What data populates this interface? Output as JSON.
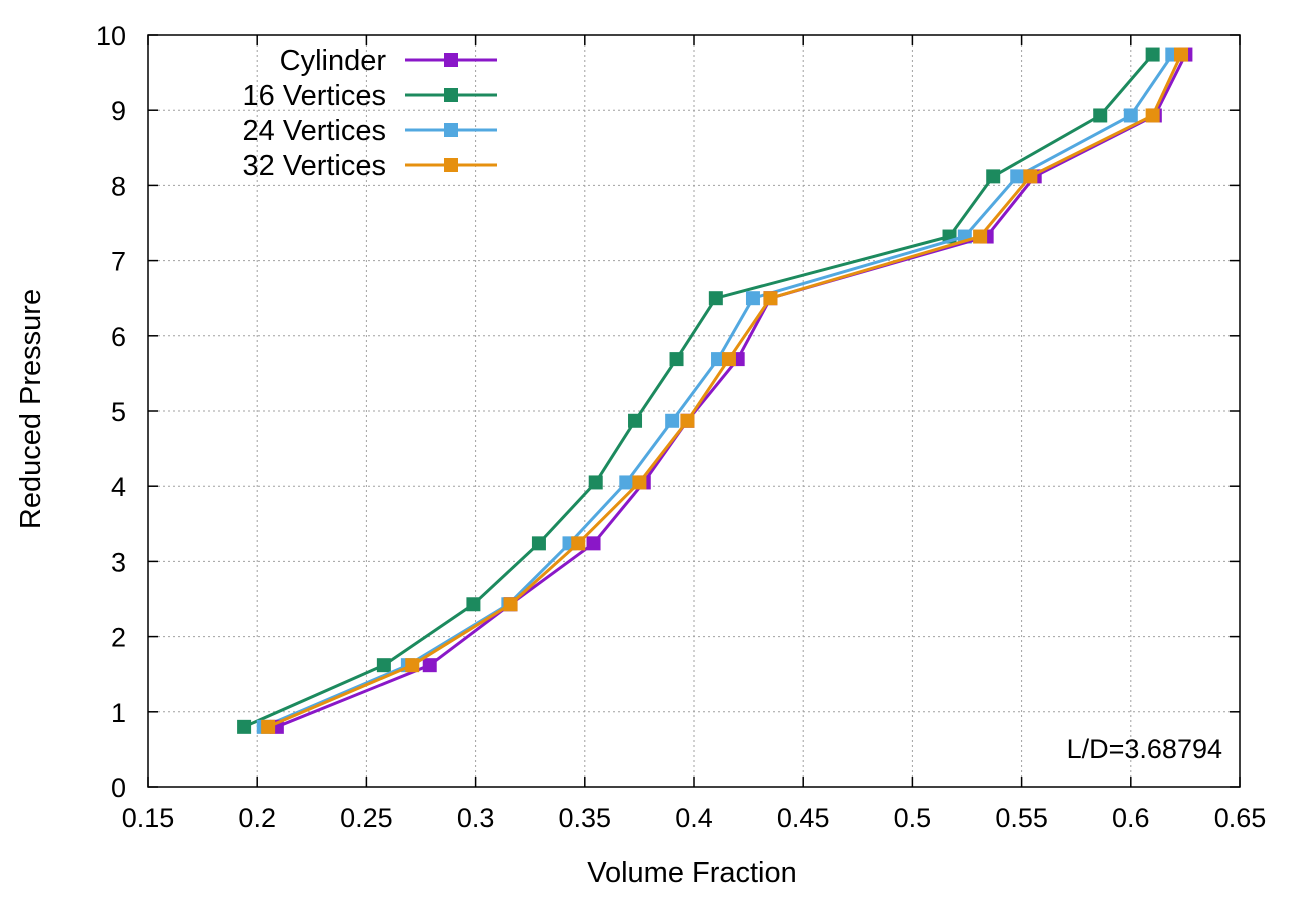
{
  "chart_data": {
    "type": "line",
    "title": "",
    "xlabel": "Volume Fraction",
    "ylabel": "Reduced Pressure",
    "xlim": [
      0.15,
      0.65
    ],
    "ylim": [
      0,
      10
    ],
    "xticks": [
      "0.15",
      "0.2",
      "0.25",
      "0.3",
      "0.35",
      "0.4",
      "0.45",
      "0.5",
      "0.55",
      "0.6",
      "0.65"
    ],
    "yticks": [
      "0",
      "1",
      "2",
      "3",
      "4",
      "5",
      "6",
      "7",
      "8",
      "9",
      "10"
    ],
    "grid": true,
    "legend_position": "top-left",
    "annotation": "L/D=3.68794",
    "series": [
      {
        "name": "Cylinder",
        "color": "#8a17c8",
        "x": [
          0.209,
          0.279,
          0.316,
          0.354,
          0.377,
          0.397,
          0.42,
          0.435,
          0.534,
          0.556,
          0.611,
          0.625
        ],
        "y": [
          0.8,
          1.62,
          2.43,
          3.24,
          4.05,
          4.87,
          5.69,
          6.5,
          7.32,
          8.12,
          8.93,
          9.74
        ]
      },
      {
        "name": "16 Vertices",
        "color": "#1c8a5e",
        "x": [
          0.194,
          0.258,
          0.299,
          0.329,
          0.355,
          0.373,
          0.392,
          0.41,
          0.517,
          0.537,
          0.586,
          0.61
        ],
        "y": [
          0.8,
          1.62,
          2.43,
          3.24,
          4.05,
          4.87,
          5.69,
          6.5,
          7.32,
          8.12,
          8.93,
          9.74
        ]
      },
      {
        "name": "24 Vertices",
        "color": "#52a8e0",
        "x": [
          0.203,
          0.269,
          0.315,
          0.343,
          0.369,
          0.39,
          0.411,
          0.427,
          0.524,
          0.548,
          0.6,
          0.619
        ],
        "y": [
          0.8,
          1.62,
          2.43,
          3.24,
          4.05,
          4.87,
          5.69,
          6.5,
          7.32,
          8.12,
          8.93,
          9.74
        ]
      },
      {
        "name": "32 Vertices",
        "color": "#e6900f",
        "x": [
          0.205,
          0.271,
          0.316,
          0.347,
          0.375,
          0.397,
          0.416,
          0.435,
          0.531,
          0.554,
          0.61,
          0.623
        ],
        "y": [
          0.8,
          1.62,
          2.43,
          3.24,
          4.05,
          4.87,
          5.69,
          6.5,
          7.32,
          8.12,
          8.93,
          9.74
        ]
      }
    ]
  }
}
